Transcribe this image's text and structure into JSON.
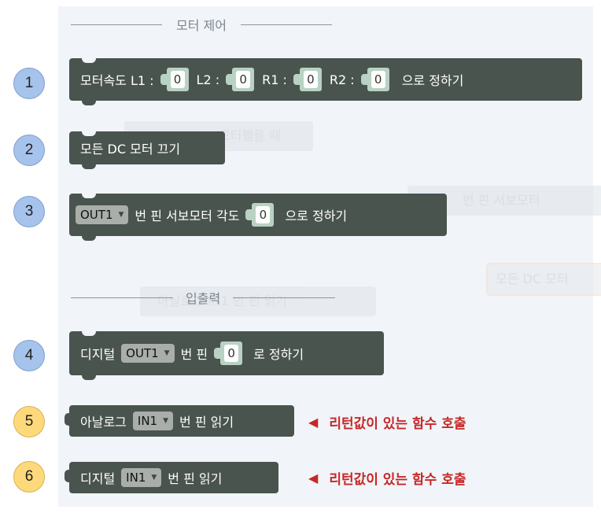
{
  "sections": {
    "motor": "모터 제어",
    "io": "입출력"
  },
  "badges": [
    "1",
    "2",
    "3",
    "4",
    "5",
    "6"
  ],
  "blocks": {
    "speed": {
      "label": "모터속도 L1 :",
      "l1": "0",
      "l2_label": "L2 :",
      "l2": "0",
      "r1_label": "R1 :",
      "r1": "0",
      "r2_label": "R2 :",
      "r2": "0",
      "suffix": "으로 정하기"
    },
    "stop": {
      "label": "모든 DC 모터 끄기"
    },
    "servo": {
      "pin": "OUT1",
      "mid": "번 핀 서보모터 각도",
      "value": "0",
      "suffix": "으로 정하기"
    },
    "digital_write": {
      "label": "디지털",
      "pin": "OUT1",
      "mid": "번 핀",
      "value": "0",
      "suffix": "로 정하기"
    },
    "analog_read": {
      "label": "아날로그",
      "pin": "IN1",
      "suffix": "번 핀 읽기"
    },
    "digital_read": {
      "label": "디지털",
      "pin": "IN1",
      "suffix": "번 핀 읽기"
    }
  },
  "notes": {
    "analog": "리턴값이 있는 함수 호출",
    "digital": "리턴값이 있는 함수 호출"
  },
  "ghosts": {
    "g1": "모터햄을 때",
    "g2": "번 핀 서보모터",
    "g3": "모든 DC 모터",
    "g4": "아날로그 IN1 번 핀 읽기"
  },
  "colors": {
    "block": "#4a544e",
    "workspace": "#f1f4f8",
    "note": "#c62828",
    "badge_blue": "#a6c3ec",
    "badge_yellow": "#fdd97c"
  }
}
